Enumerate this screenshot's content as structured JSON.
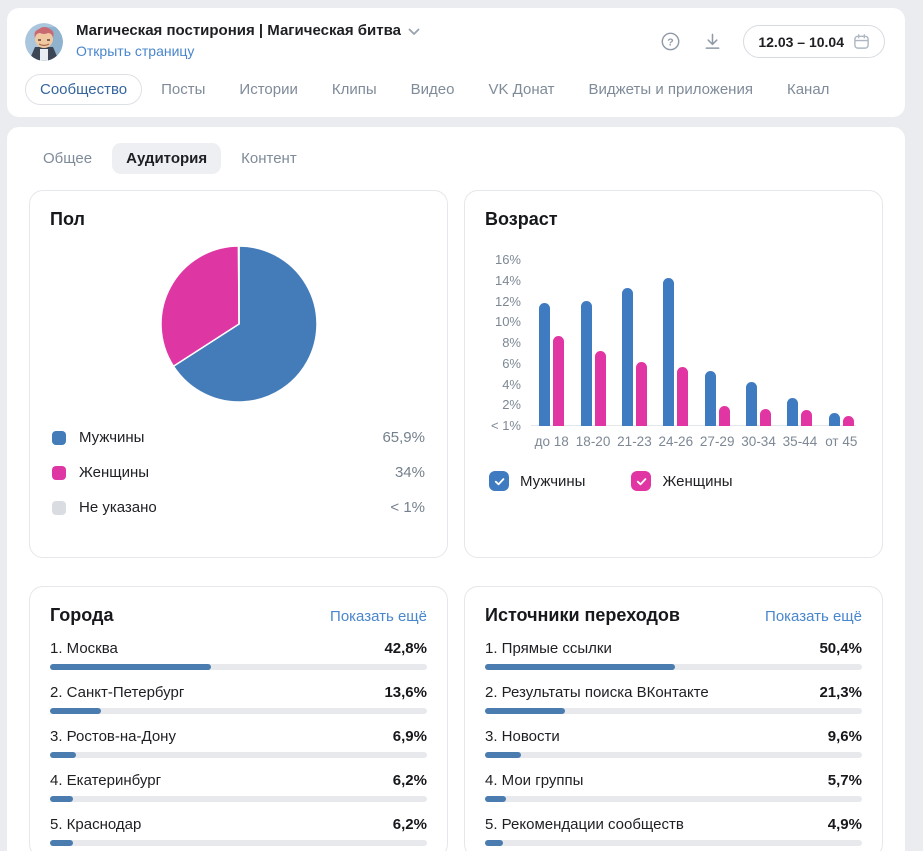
{
  "header": {
    "title": "Магическая постирония | Магическая битва",
    "open_page": "Открыть страницу",
    "date_range": "12.03 – 10.04"
  },
  "colors": {
    "link_blue": "#4986cc",
    "male_blue": "#447cba",
    "female_pink": "#de37a4",
    "unknown_gray": "#d9dde2",
    "progress_blue": "#4a7cb0",
    "checkbox_blue": "#447fc0",
    "checkbox_pink": "#e4459f"
  },
  "tabs": {
    "items": [
      {
        "label": "Сообщество",
        "selected": true
      },
      {
        "label": "Посты",
        "selected": false
      },
      {
        "label": "Истории",
        "selected": false
      },
      {
        "label": "Клипы",
        "selected": false
      },
      {
        "label": "Видео",
        "selected": false
      },
      {
        "label": "VK Донат",
        "selected": false
      },
      {
        "label": "Виджеты и приложения",
        "selected": false
      },
      {
        "label": "Канал",
        "selected": false
      }
    ]
  },
  "subtabs": {
    "items": [
      {
        "label": "Общее",
        "selected": false
      },
      {
        "label": "Аудитория",
        "selected": true
      },
      {
        "label": "Контент",
        "selected": false
      }
    ]
  },
  "chart_data": [
    {
      "type": "pie",
      "title": "Пол",
      "legend_position": "bottom",
      "series": [
        {
          "name": "Мужчины",
          "value": 65.9,
          "value_label": "65,9%",
          "color": "#447cba"
        },
        {
          "name": "Женщины",
          "value": 34,
          "value_label": "34%",
          "color": "#de37a4"
        },
        {
          "name": "Не указано",
          "value": 0.1,
          "value_label": "< 1%",
          "color": "#d9dde2"
        }
      ]
    },
    {
      "type": "bar",
      "title": "Возраст",
      "categories": [
        "до 18",
        "18-20",
        "21-23",
        "24-26",
        "27-29",
        "30-34",
        "35-44",
        "от 45"
      ],
      "series": [
        {
          "name": "Мужчины",
          "color": "#3f7bc0",
          "checked": true,
          "values": [
            11.9,
            12.1,
            13.3,
            14.3,
            5.3,
            4.2,
            2.7,
            1.3
          ]
        },
        {
          "name": "Женщины",
          "color": "#e135a3",
          "checked": true,
          "values": [
            8.7,
            7.2,
            6.2,
            5.7,
            1.9,
            1.6,
            1.5,
            1.0
          ]
        }
      ],
      "ylim": [
        0,
        16
      ],
      "yticks": [
        {
          "v": 16,
          "label": "16%"
        },
        {
          "v": 14,
          "label": "14%"
        },
        {
          "v": 12,
          "label": "12%"
        },
        {
          "v": 10,
          "label": "10%"
        },
        {
          "v": 8,
          "label": "8%"
        },
        {
          "v": 6,
          "label": "6%"
        },
        {
          "v": 4,
          "label": "4%"
        },
        {
          "v": 2,
          "label": "2%"
        },
        {
          "v": 0,
          "label": "< 1%"
        }
      ],
      "grid": false
    }
  ],
  "cities": {
    "title": "Города",
    "show_more": "Показать ещё",
    "items": [
      {
        "label": "1. Москва",
        "percent": 42.8,
        "percent_label": "42,8%"
      },
      {
        "label": "2. Санкт-Петербург",
        "percent": 13.6,
        "percent_label": "13,6%"
      },
      {
        "label": "3. Ростов-на-Дону",
        "percent": 6.9,
        "percent_label": "6,9%"
      },
      {
        "label": "4. Екатеринбург",
        "percent": 6.2,
        "percent_label": "6,2%"
      },
      {
        "label": "5. Краснодар",
        "percent": 6.2,
        "percent_label": "6,2%"
      }
    ]
  },
  "sources": {
    "title": "Источники переходов",
    "show_more": "Показать ещё",
    "items": [
      {
        "label": "1. Прямые ссылки",
        "percent": 50.4,
        "percent_label": "50,4%"
      },
      {
        "label": "2. Результаты поиска ВКонтакте",
        "percent": 21.3,
        "percent_label": "21,3%"
      },
      {
        "label": "3. Новости",
        "percent": 9.6,
        "percent_label": "9,6%"
      },
      {
        "label": "4. Мои группы",
        "percent": 5.7,
        "percent_label": "5,7%"
      },
      {
        "label": "5. Рекомендации сообществ",
        "percent": 4.9,
        "percent_label": "4,9%"
      }
    ]
  }
}
